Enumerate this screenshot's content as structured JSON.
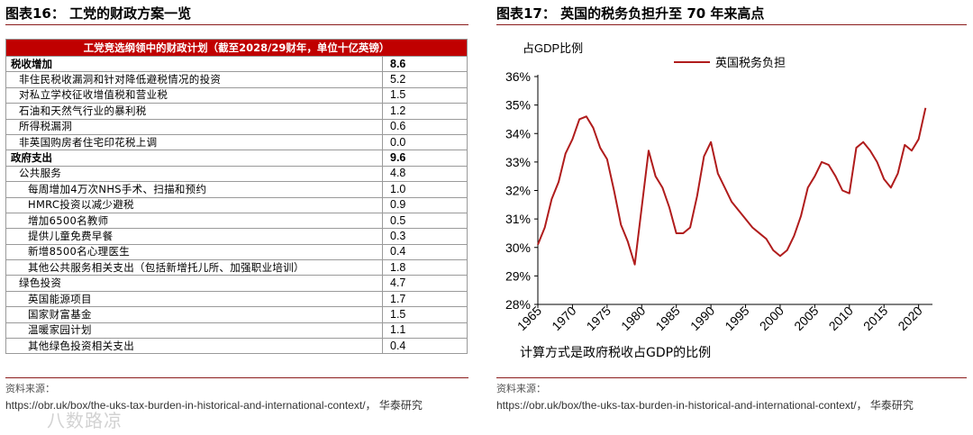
{
  "left_panel": {
    "title": "图表16：  工党的财政方案一览",
    "table": {
      "header": "工党竞选纲领中的财政计划（截至2028/29财年，单位十亿英镑）",
      "rows": [
        {
          "label": "税收增加",
          "value": "8.6",
          "level": "cat"
        },
        {
          "label": "非住民税收漏洞和针对降低避税情况的投资",
          "value": "5.2",
          "level": "lvl1"
        },
        {
          "label": "对私立学校征收增值税和营业税",
          "value": "1.5",
          "level": "lvl1"
        },
        {
          "label": "石油和天然气行业的暴利税",
          "value": "1.2",
          "level": "lvl1"
        },
        {
          "label": "所得税漏洞",
          "value": "0.6",
          "level": "lvl1"
        },
        {
          "label": "非英国购房者住宅印花税上调",
          "value": "0.0",
          "level": "lvl1"
        },
        {
          "label": "政府支出",
          "value": "9.6",
          "level": "cat"
        },
        {
          "label": "公共服务",
          "value": "4.8",
          "level": "lvl1"
        },
        {
          "label": "每周增加4万次NHS手术、扫描和预约",
          "value": "1.0",
          "level": "lvl2"
        },
        {
          "label": "HMRC投资以减少避税",
          "value": "0.9",
          "level": "lvl2"
        },
        {
          "label": "增加6500名教师",
          "value": "0.5",
          "level": "lvl2"
        },
        {
          "label": "提供儿童免费早餐",
          "value": "0.3",
          "level": "lvl2"
        },
        {
          "label": "新增8500名心理医生",
          "value": "0.4",
          "level": "lvl2"
        },
        {
          "label": "其他公共服务相关支出（包括新增托儿所、加强职业培训）",
          "value": "1.8",
          "level": "lvl2"
        },
        {
          "label": "绿色投资",
          "value": "4.7",
          "level": "lvl1"
        },
        {
          "label": "英国能源项目",
          "value": "1.7",
          "level": "lvl2"
        },
        {
          "label": "国家财富基金",
          "value": "1.5",
          "level": "lvl2"
        },
        {
          "label": "温暖家园计划",
          "value": "1.1",
          "level": "lvl2"
        },
        {
          "label": "其他绿色投资相关支出",
          "value": "0.4",
          "level": "lvl2"
        }
      ]
    },
    "source_label": "资料来源：",
    "source_text": "https://obr.uk/box/the-uks-tax-burden-in-historical-and-international-context/， 华泰研究",
    "watermark": "八数路凉"
  },
  "right_panel": {
    "title": "图表17：  英国的税务负担升至 70 年来高点",
    "source_label": "资料来源：",
    "source_text": "https://obr.uk/box/the-uks-tax-burden-in-historical-and-international-context/， 华泰研究"
  },
  "chart_data": {
    "type": "line",
    "title": "",
    "ylabel": "占GDP比例",
    "xlabel": "计算方式是政府税收占GDP的比例",
    "xlim": [
      1965,
      2022
    ],
    "ylim": [
      28,
      36
    ],
    "x_ticks": [
      1965,
      1970,
      1975,
      1980,
      1985,
      1990,
      1995,
      2000,
      2005,
      2010,
      2015,
      2020
    ],
    "y_ticks": [
      "28%",
      "29%",
      "30%",
      "31%",
      "32%",
      "33%",
      "34%",
      "35%",
      "36%"
    ],
    "y_tick_values": [
      28,
      29,
      30,
      31,
      32,
      33,
      34,
      35,
      36
    ],
    "legend_position": "top-center",
    "grid": false,
    "series": [
      {
        "name": "英国税务负担",
        "color": "#b01c1c",
        "x": [
          1965,
          1966,
          1967,
          1968,
          1969,
          1970,
          1971,
          1972,
          1973,
          1974,
          1975,
          1976,
          1977,
          1978,
          1979,
          1980,
          1981,
          1982,
          1983,
          1984,
          1985,
          1986,
          1987,
          1988,
          1989,
          1990,
          1991,
          1992,
          1993,
          1994,
          1995,
          1996,
          1997,
          1998,
          1999,
          2000,
          2001,
          2002,
          2003,
          2004,
          2005,
          2006,
          2007,
          2008,
          2009,
          2010,
          2011,
          2012,
          2013,
          2014,
          2015,
          2016,
          2017,
          2018,
          2019,
          2020,
          2021
        ],
        "y": [
          30.1,
          30.7,
          31.7,
          32.3,
          33.3,
          33.8,
          34.5,
          34.6,
          34.2,
          33.5,
          33.1,
          32.0,
          30.8,
          30.2,
          29.4,
          31.4,
          33.4,
          32.5,
          32.1,
          31.4,
          30.5,
          30.5,
          30.7,
          31.8,
          33.2,
          33.7,
          32.6,
          32.1,
          31.6,
          31.3,
          31.0,
          30.7,
          30.5,
          30.3,
          29.9,
          29.7,
          29.9,
          30.4,
          31.1,
          32.1,
          32.5,
          33.0,
          32.9,
          32.5,
          32.0,
          31.9,
          33.5,
          33.7,
          33.4,
          33.0,
          32.4,
          32.1,
          32.6,
          33.6,
          33.4,
          33.8,
          34.9
        ]
      }
    ]
  }
}
